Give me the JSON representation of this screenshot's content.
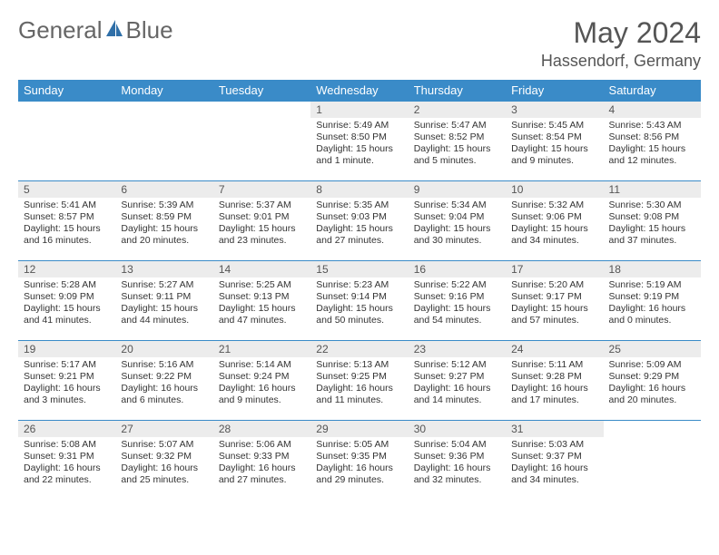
{
  "logo": {
    "word1": "General",
    "word2": "Blue"
  },
  "title": "May 2024",
  "location": "Hassendorf, Germany",
  "colors": {
    "header_bg": "#3a8bc8",
    "header_text": "#ffffff",
    "daynum_bg": "#ececec",
    "border": "#3a8bc8",
    "text": "#333333",
    "title_text": "#555555"
  },
  "weekdays": [
    "Sunday",
    "Monday",
    "Tuesday",
    "Wednesday",
    "Thursday",
    "Friday",
    "Saturday"
  ],
  "weeks": [
    [
      null,
      null,
      null,
      {
        "n": "1",
        "sunrise": "5:49 AM",
        "sunset": "8:50 PM",
        "daylight": "15 hours and 1 minute."
      },
      {
        "n": "2",
        "sunrise": "5:47 AM",
        "sunset": "8:52 PM",
        "daylight": "15 hours and 5 minutes."
      },
      {
        "n": "3",
        "sunrise": "5:45 AM",
        "sunset": "8:54 PM",
        "daylight": "15 hours and 9 minutes."
      },
      {
        "n": "4",
        "sunrise": "5:43 AM",
        "sunset": "8:56 PM",
        "daylight": "15 hours and 12 minutes."
      }
    ],
    [
      {
        "n": "5",
        "sunrise": "5:41 AM",
        "sunset": "8:57 PM",
        "daylight": "15 hours and 16 minutes."
      },
      {
        "n": "6",
        "sunrise": "5:39 AM",
        "sunset": "8:59 PM",
        "daylight": "15 hours and 20 minutes."
      },
      {
        "n": "7",
        "sunrise": "5:37 AM",
        "sunset": "9:01 PM",
        "daylight": "15 hours and 23 minutes."
      },
      {
        "n": "8",
        "sunrise": "5:35 AM",
        "sunset": "9:03 PM",
        "daylight": "15 hours and 27 minutes."
      },
      {
        "n": "9",
        "sunrise": "5:34 AM",
        "sunset": "9:04 PM",
        "daylight": "15 hours and 30 minutes."
      },
      {
        "n": "10",
        "sunrise": "5:32 AM",
        "sunset": "9:06 PM",
        "daylight": "15 hours and 34 minutes."
      },
      {
        "n": "11",
        "sunrise": "5:30 AM",
        "sunset": "9:08 PM",
        "daylight": "15 hours and 37 minutes."
      }
    ],
    [
      {
        "n": "12",
        "sunrise": "5:28 AM",
        "sunset": "9:09 PM",
        "daylight": "15 hours and 41 minutes."
      },
      {
        "n": "13",
        "sunrise": "5:27 AM",
        "sunset": "9:11 PM",
        "daylight": "15 hours and 44 minutes."
      },
      {
        "n": "14",
        "sunrise": "5:25 AM",
        "sunset": "9:13 PM",
        "daylight": "15 hours and 47 minutes."
      },
      {
        "n": "15",
        "sunrise": "5:23 AM",
        "sunset": "9:14 PM",
        "daylight": "15 hours and 50 minutes."
      },
      {
        "n": "16",
        "sunrise": "5:22 AM",
        "sunset": "9:16 PM",
        "daylight": "15 hours and 54 minutes."
      },
      {
        "n": "17",
        "sunrise": "5:20 AM",
        "sunset": "9:17 PM",
        "daylight": "15 hours and 57 minutes."
      },
      {
        "n": "18",
        "sunrise": "5:19 AM",
        "sunset": "9:19 PM",
        "daylight": "16 hours and 0 minutes."
      }
    ],
    [
      {
        "n": "19",
        "sunrise": "5:17 AM",
        "sunset": "9:21 PM",
        "daylight": "16 hours and 3 minutes."
      },
      {
        "n": "20",
        "sunrise": "5:16 AM",
        "sunset": "9:22 PM",
        "daylight": "16 hours and 6 minutes."
      },
      {
        "n": "21",
        "sunrise": "5:14 AM",
        "sunset": "9:24 PM",
        "daylight": "16 hours and 9 minutes."
      },
      {
        "n": "22",
        "sunrise": "5:13 AM",
        "sunset": "9:25 PM",
        "daylight": "16 hours and 11 minutes."
      },
      {
        "n": "23",
        "sunrise": "5:12 AM",
        "sunset": "9:27 PM",
        "daylight": "16 hours and 14 minutes."
      },
      {
        "n": "24",
        "sunrise": "5:11 AM",
        "sunset": "9:28 PM",
        "daylight": "16 hours and 17 minutes."
      },
      {
        "n": "25",
        "sunrise": "5:09 AM",
        "sunset": "9:29 PM",
        "daylight": "16 hours and 20 minutes."
      }
    ],
    [
      {
        "n": "26",
        "sunrise": "5:08 AM",
        "sunset": "9:31 PM",
        "daylight": "16 hours and 22 minutes."
      },
      {
        "n": "27",
        "sunrise": "5:07 AM",
        "sunset": "9:32 PM",
        "daylight": "16 hours and 25 minutes."
      },
      {
        "n": "28",
        "sunrise": "5:06 AM",
        "sunset": "9:33 PM",
        "daylight": "16 hours and 27 minutes."
      },
      {
        "n": "29",
        "sunrise": "5:05 AM",
        "sunset": "9:35 PM",
        "daylight": "16 hours and 29 minutes."
      },
      {
        "n": "30",
        "sunrise": "5:04 AM",
        "sunset": "9:36 PM",
        "daylight": "16 hours and 32 minutes."
      },
      {
        "n": "31",
        "sunrise": "5:03 AM",
        "sunset": "9:37 PM",
        "daylight": "16 hours and 34 minutes."
      },
      null
    ]
  ],
  "labels": {
    "sunrise": "Sunrise:",
    "sunset": "Sunset:",
    "daylight": "Daylight:"
  }
}
